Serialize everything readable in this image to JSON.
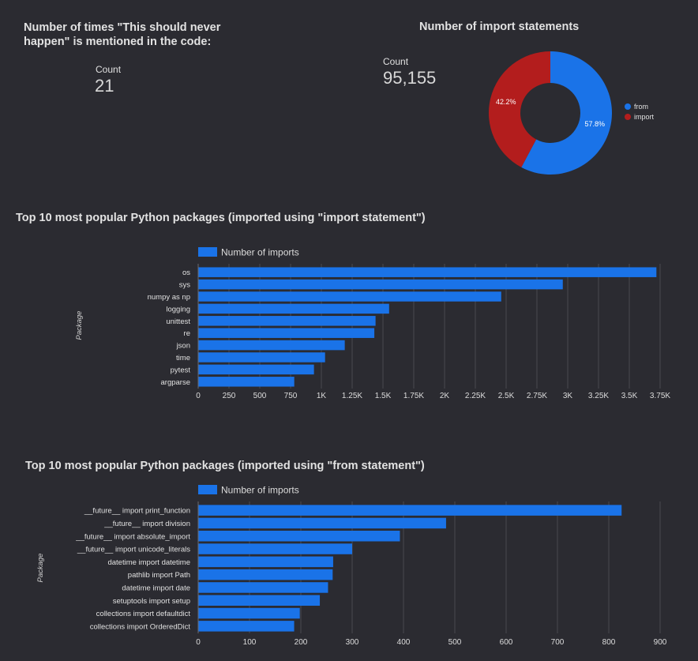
{
  "scorecard1": {
    "title_line1": "Number of times \"This should never",
    "title_line2": "happen\" is mentioned in the code:",
    "label": "Count",
    "value": "21"
  },
  "scorecard2": {
    "title": "Number of import statements",
    "label": "Count",
    "value": "95,155"
  },
  "colors": {
    "bar": "#1a73e8",
    "donut_from": "#1a73e8",
    "donut_import": "#b31d1d",
    "grid": "#4a4a50",
    "background": "#2b2b31"
  },
  "chart_data": [
    {
      "type": "pie",
      "donut": true,
      "title": "Number of import statements",
      "labels": [
        "from",
        "import"
      ],
      "values": [
        57.8,
        42.2
      ],
      "value_labels": [
        "57.8%",
        "42.2%"
      ],
      "legend": [
        "from",
        "import"
      ]
    },
    {
      "type": "bar",
      "orientation": "horizontal",
      "title": "Top 10 most popular Python packages (imported using \"import statement\")",
      "legend": "Number of imports",
      "ylabel": "Package",
      "categories": [
        "os",
        "sys",
        "numpy as np",
        "logging",
        "unittest",
        "re",
        "json",
        "time",
        "pytest",
        "argparse"
      ],
      "values": [
        3720,
        2960,
        2460,
        1550,
        1440,
        1430,
        1190,
        1030,
        940,
        780
      ],
      "xlim": [
        0,
        3750
      ],
      "xticks": [
        0,
        250,
        500,
        750,
        1000,
        1250,
        1500,
        1750,
        2000,
        2250,
        2500,
        2750,
        3000,
        3250,
        3500,
        3750
      ],
      "xtick_labels": [
        "0",
        "250",
        "500",
        "750",
        "1K",
        "1.25K",
        "1.5K",
        "1.75K",
        "2K",
        "2.25K",
        "2.5K",
        "2.75K",
        "3K",
        "3.25K",
        "3.5K",
        "3.75K"
      ]
    },
    {
      "type": "bar",
      "orientation": "horizontal",
      "title": "Top 10 most popular Python packages (imported using \"from statement\")",
      "legend": "Number of imports",
      "ylabel": "Package",
      "categories": [
        "__future__ import print_function",
        "__future__ import division",
        "__future__ import absolute_import",
        "__future__ import unicode_literals",
        "datetime import datetime",
        "pathlib import Path",
        "datetime import date",
        "setuptools import setup",
        "collections import defaultdict",
        "collections import OrderedDict"
      ],
      "values": [
        825,
        483,
        393,
        300,
        263,
        262,
        253,
        237,
        198,
        187
      ],
      "xlim": [
        0,
        900
      ],
      "xticks": [
        0,
        100,
        200,
        300,
        400,
        500,
        600,
        700,
        800,
        900
      ],
      "xtick_labels": [
        "0",
        "100",
        "200",
        "300",
        "400",
        "500",
        "600",
        "700",
        "800",
        "900"
      ]
    }
  ]
}
